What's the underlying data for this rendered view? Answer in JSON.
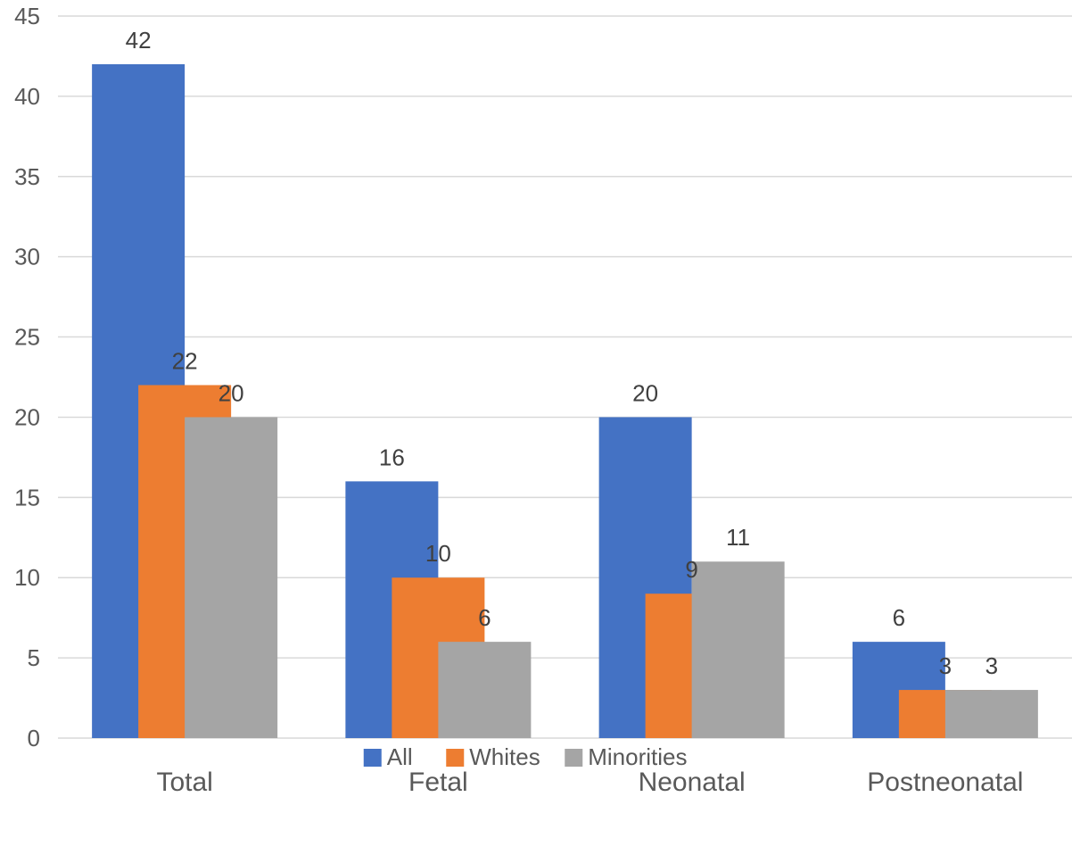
{
  "chart_data": {
    "type": "bar",
    "title": "",
    "xlabel": "",
    "ylabel": "",
    "categories": [
      "Total",
      "Fetal",
      "Neonatal",
      "Postneonatal"
    ],
    "series": [
      {
        "name": "All",
        "color": "#4472C4",
        "values": [
          42,
          16,
          20,
          6
        ]
      },
      {
        "name": "Whites",
        "color": "#ED7D31",
        "values": [
          22,
          10,
          9,
          3
        ]
      },
      {
        "name": "Minorities",
        "color": "#A5A5A5",
        "values": [
          20,
          6,
          11,
          3
        ]
      }
    ],
    "ylim": [
      0,
      45
    ],
    "yticks": [
      0,
      5,
      10,
      15,
      20,
      25,
      30,
      35,
      40,
      45
    ],
    "grid": true,
    "legend_position": "bottom",
    "data_labels": true
  }
}
